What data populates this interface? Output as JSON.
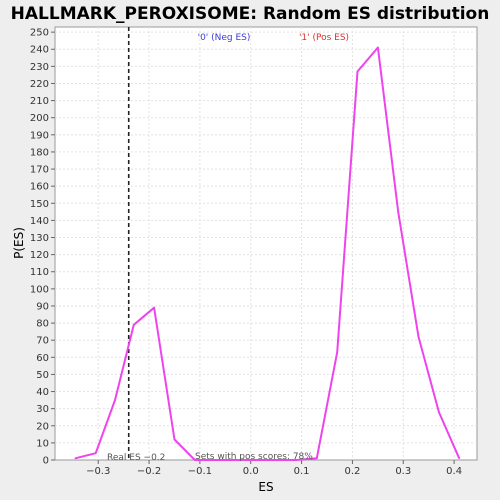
{
  "chart_data": {
    "type": "line",
    "title": "HALLMARK_PEROXISOME: Random ES distribution",
    "xlabel": "ES",
    "ylabel": "P(ES)",
    "xlim": [
      -0.385,
      0.445
    ],
    "ylim": [
      0,
      253
    ],
    "x_ticks": [
      -0.3,
      -0.2,
      -0.1,
      0.0,
      0.1,
      0.2,
      0.3,
      0.4
    ],
    "x_tick_labels": [
      "−0.3",
      "−0.2",
      "−0.1",
      "0.0",
      "0.1",
      "0.2",
      "0.3",
      "0.4"
    ],
    "y_ticks": [
      0,
      10,
      20,
      30,
      40,
      50,
      60,
      70,
      80,
      90,
      100,
      110,
      120,
      130,
      140,
      150,
      160,
      170,
      180,
      190,
      200,
      210,
      220,
      230,
      240,
      250
    ],
    "grid": true,
    "series": [
      {
        "color": "#ee44ee",
        "x": [
          -0.345,
          -0.305,
          -0.267,
          -0.23,
          -0.19,
          -0.15,
          -0.11,
          -0.07,
          -0.03,
          0.01,
          0.05,
          0.09,
          0.13,
          0.17,
          0.21,
          0.25,
          0.29,
          0.33,
          0.37,
          0.41
        ],
        "y": [
          1,
          4,
          35,
          79,
          89,
          12,
          0,
          0,
          0,
          0,
          0,
          0,
          1,
          63,
          227,
          241,
          145,
          72,
          28,
          1
        ]
      }
    ],
    "real_es": -0.24,
    "legend": {
      "neg": "'0' (Neg ES)",
      "pos": "'1' (Pos ES)"
    },
    "annotations": {
      "real_es": "Real ES −0.2",
      "pos_scores": "Sets with pos scores: 78%"
    }
  }
}
